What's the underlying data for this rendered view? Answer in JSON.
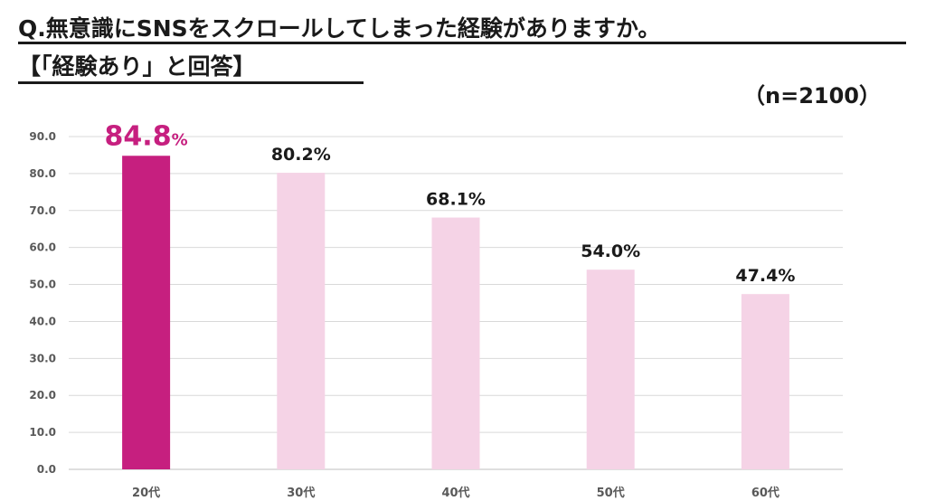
{
  "header": {
    "title_line1": "Q.無意識にSNSをスクロールしてしまった経験がありますか。",
    "title_line2": "【「経験あり」と回答】",
    "sample_size": "（n=2100）"
  },
  "colors": {
    "highlight": "#c61f7f",
    "bar": "#f5d3e6",
    "grid": "#d9d9d9"
  },
  "chart_data": {
    "type": "bar",
    "title": "Q.無意識にSNSをスクロールしてしまった経験がありますか。【「経験あり」と回答】",
    "categories": [
      "20代",
      "30代",
      "40代",
      "50代",
      "60代"
    ],
    "values": [
      84.8,
      80.2,
      68.1,
      54.0,
      47.4
    ],
    "value_labels": [
      "84.8",
      "80.2",
      "68.1",
      "54.0",
      "47.4"
    ],
    "value_suffix": "%",
    "highlight_index": 0,
    "y_ticks": [
      "0.0",
      "10.0",
      "20.0",
      "30.0",
      "40.0",
      "50.0",
      "60.0",
      "70.0",
      "80.0",
      "90.0"
    ],
    "ylim": [
      0,
      90
    ],
    "grid": true,
    "legend": "none",
    "xlabel": "",
    "ylabel": ""
  }
}
